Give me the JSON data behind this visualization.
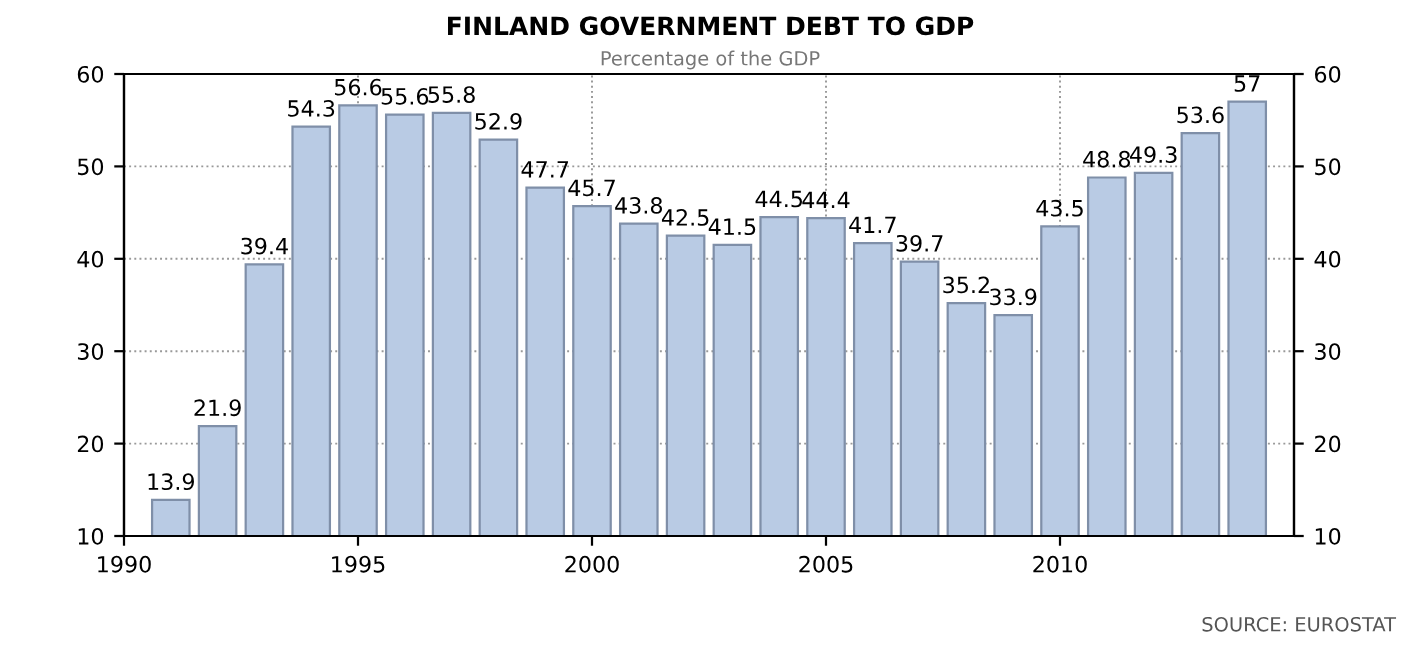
{
  "chart_data": {
    "type": "bar",
    "title": "FINLAND GOVERNMENT DEBT TO GDP",
    "subtitle": "Percentage of the GDP",
    "x": [
      1991,
      1992,
      1993,
      1994,
      1995,
      1996,
      1997,
      1998,
      1999,
      2000,
      2001,
      2002,
      2003,
      2004,
      2005,
      2006,
      2007,
      2008,
      2009,
      2010,
      2011,
      2012,
      2013,
      2014
    ],
    "values": [
      13.9,
      21.9,
      39.4,
      54.3,
      56.6,
      55.6,
      55.8,
      52.9,
      47.7,
      45.7,
      43.8,
      42.5,
      41.5,
      44.5,
      44.4,
      41.7,
      39.7,
      35.2,
      33.9,
      43.5,
      48.8,
      49.3,
      53.6,
      57
    ],
    "color": "#b9cbe4",
    "data_labels": true,
    "xlim": [
      1990,
      2015
    ],
    "xticks": [
      1990,
      1995,
      2000,
      2005,
      2010
    ],
    "ylim": [
      10,
      60
    ],
    "yticks": [
      10,
      20,
      30,
      40,
      50,
      60
    ],
    "y2lim": [
      10,
      60
    ],
    "y2ticks": [
      10,
      20,
      30,
      40,
      50,
      60
    ],
    "grid": true,
    "annotations": [
      "SOURCE: EUROSTAT"
    ]
  }
}
